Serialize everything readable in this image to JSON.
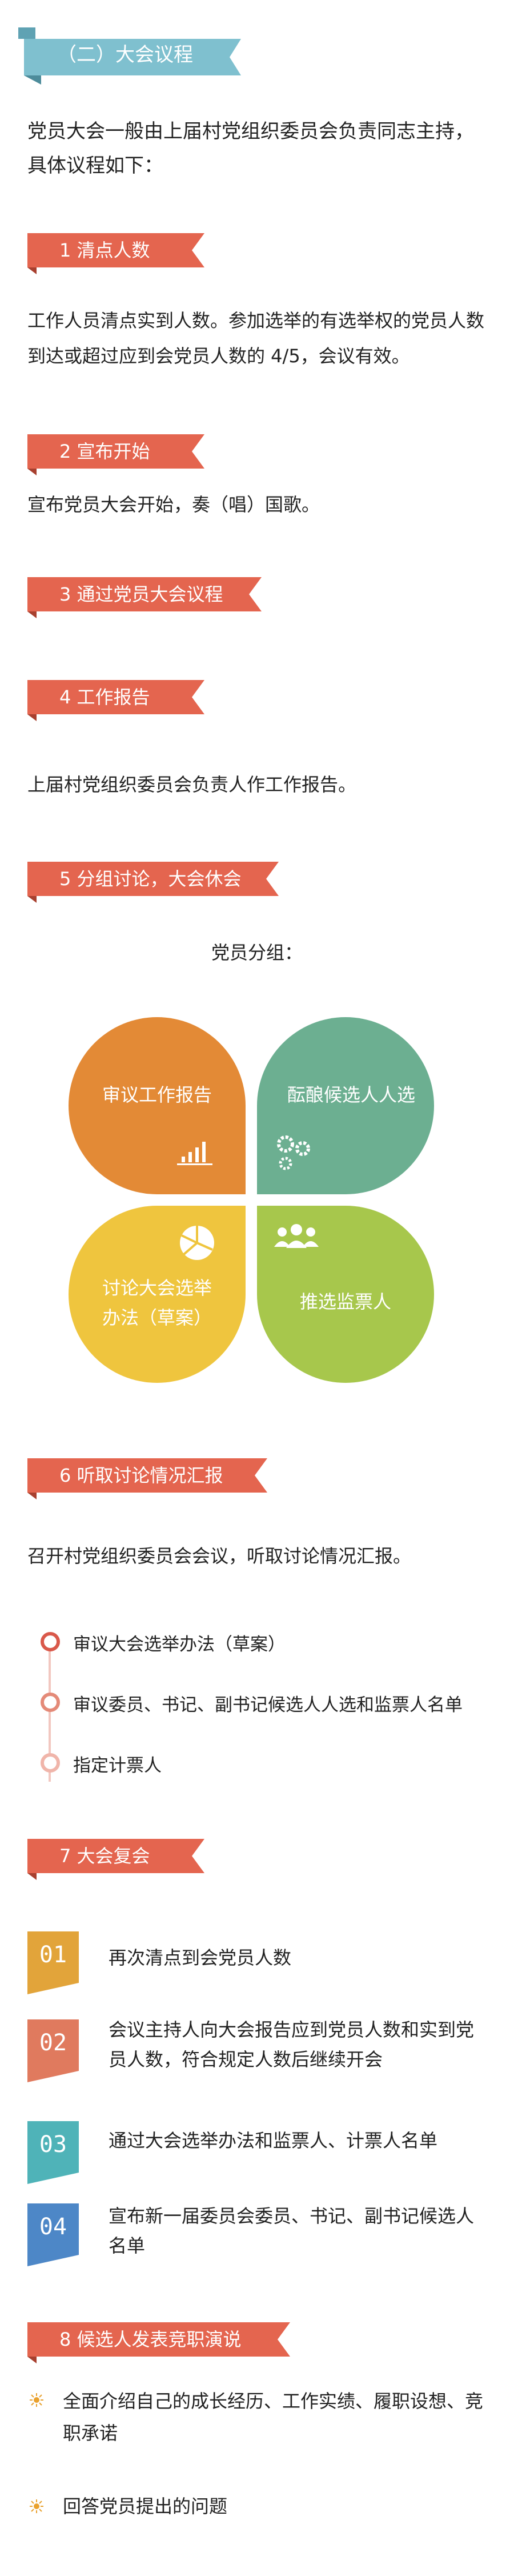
{
  "header": {
    "title": "（二）大会议程"
  },
  "intro": "党员大会一般由上届村党组织委员会负责同志主持，具体议程如下：",
  "colors": {
    "tag": "#e4654f",
    "ribbon": "#7fc0cf",
    "orange": "#e38a36",
    "green": "#6caf91",
    "yellow": "#efc53e",
    "lime": "#a7c74c"
  },
  "sections": [
    {
      "label": "1  清点人数",
      "text": "工作人员清点实到人数。参加选举的有选举权的党员人数到达或超过应到会党员人数的 4/5，会议有效。"
    },
    {
      "label": "2  宣布开始",
      "text": "宣布党员大会开始，奏（唱）国歌。"
    },
    {
      "label": "3  通过党员大会议程"
    },
    {
      "label": "4  工作报告",
      "text": "上届村党组织委员会负责人作工作报告。"
    },
    {
      "label": "5  分组讨论，大会休会",
      "group_title": "党员分组："
    },
    {
      "label": "6  听取讨论情况汇报",
      "text": "召开村党组织委员会会议，听取讨论情况汇报。"
    },
    {
      "label": "7  大会复会"
    },
    {
      "label": "8  候选人发表竞职演说"
    }
  ],
  "groups": [
    {
      "label": "审议工作报告",
      "icon": "bar-chart-icon"
    },
    {
      "label": "酝酿候选人人选",
      "icon": "gears-icon"
    },
    {
      "label": "讨论大会选举\n办法（草案）",
      "icon": "pie-chart-icon"
    },
    {
      "label": "推选监票人",
      "icon": "people-icon"
    }
  ],
  "timeline": [
    "审议大会选举办法（草案）",
    "审议委员、书记、副书记候选人人选和监票人名单",
    "指定计票人"
  ],
  "resume_steps": [
    {
      "num": "01",
      "text": "再次清点到会党员人数",
      "color": "#e2a43a"
    },
    {
      "num": "02",
      "text": "会议主持人向大会报告应到党员人数和实到党员人数，符合规定人数后继续开会",
      "color": "#e07a5e"
    },
    {
      "num": "03",
      "text": "通过大会选举办法和监票人、计票人名单",
      "color": "#4fb3b8"
    },
    {
      "num": "04",
      "text": "宣布新一届委员会委员、书记、副书记候选人名单",
      "color": "#4d87c7"
    }
  ],
  "speech_points": [
    "全面介绍自己的成长经历、工作实绩、履职设想、竞职承诺",
    "回答党员提出的问题"
  ]
}
